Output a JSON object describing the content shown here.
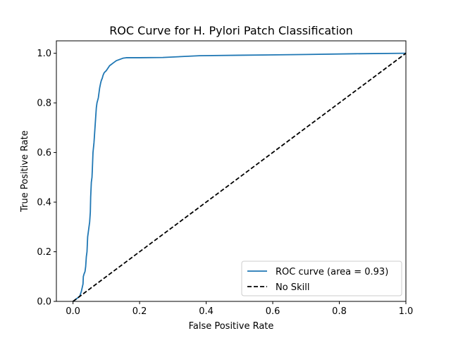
{
  "chart_data": {
    "type": "line",
    "title": "ROC Curve for H. Pylori Patch Classification",
    "xlabel": "False Positive Rate",
    "ylabel": "True Positive Rate",
    "xlim": [
      -0.05,
      1.0
    ],
    "ylim": [
      0.0,
      1.05
    ],
    "x_ticks": [
      0.0,
      0.2,
      0.4,
      0.6,
      0.8,
      1.0
    ],
    "x_tick_labels": [
      "0.0",
      "0.2",
      "0.4",
      "0.6",
      "0.8",
      "1.0"
    ],
    "y_ticks": [
      0.0,
      0.2,
      0.4,
      0.6,
      0.8,
      1.0
    ],
    "y_tick_labels": [
      "0.0",
      "0.2",
      "0.4",
      "0.6",
      "0.8",
      "1.0"
    ],
    "grid": false,
    "legend_position": "lower-right",
    "series": [
      {
        "name": "ROC curve (area = 0.93)",
        "color": "#1f77b4",
        "style": "solid",
        "x": [
          0.0,
          0.005,
          0.012,
          0.02,
          0.025,
          0.03,
          0.031,
          0.033,
          0.036,
          0.038,
          0.04,
          0.042,
          0.044,
          0.046,
          0.048,
          0.05,
          0.052,
          0.053,
          0.055,
          0.057,
          0.058,
          0.06,
          0.063,
          0.065,
          0.068,
          0.07,
          0.072,
          0.074,
          0.076,
          0.078,
          0.08,
          0.083,
          0.085,
          0.088,
          0.09,
          0.093,
          0.096,
          0.1,
          0.105,
          0.11,
          0.115,
          0.12,
          0.13,
          0.14,
          0.15,
          0.16,
          0.2,
          0.27,
          0.38,
          0.5,
          0.7,
          0.85,
          1.0
        ],
        "y": [
          0.0,
          0.005,
          0.012,
          0.02,
          0.04,
          0.07,
          0.1,
          0.11,
          0.12,
          0.14,
          0.18,
          0.2,
          0.26,
          0.28,
          0.3,
          0.32,
          0.36,
          0.42,
          0.48,
          0.5,
          0.53,
          0.6,
          0.64,
          0.68,
          0.74,
          0.78,
          0.8,
          0.81,
          0.82,
          0.84,
          0.86,
          0.88,
          0.89,
          0.9,
          0.91,
          0.92,
          0.925,
          0.93,
          0.94,
          0.95,
          0.955,
          0.96,
          0.97,
          0.975,
          0.98,
          0.982,
          0.982,
          0.983,
          0.99,
          0.992,
          0.995,
          0.998,
          1.0
        ]
      },
      {
        "name": "No Skill",
        "color": "#000000",
        "style": "dashed",
        "x": [
          0.0,
          1.0
        ],
        "y": [
          0.0,
          1.0
        ]
      }
    ]
  }
}
